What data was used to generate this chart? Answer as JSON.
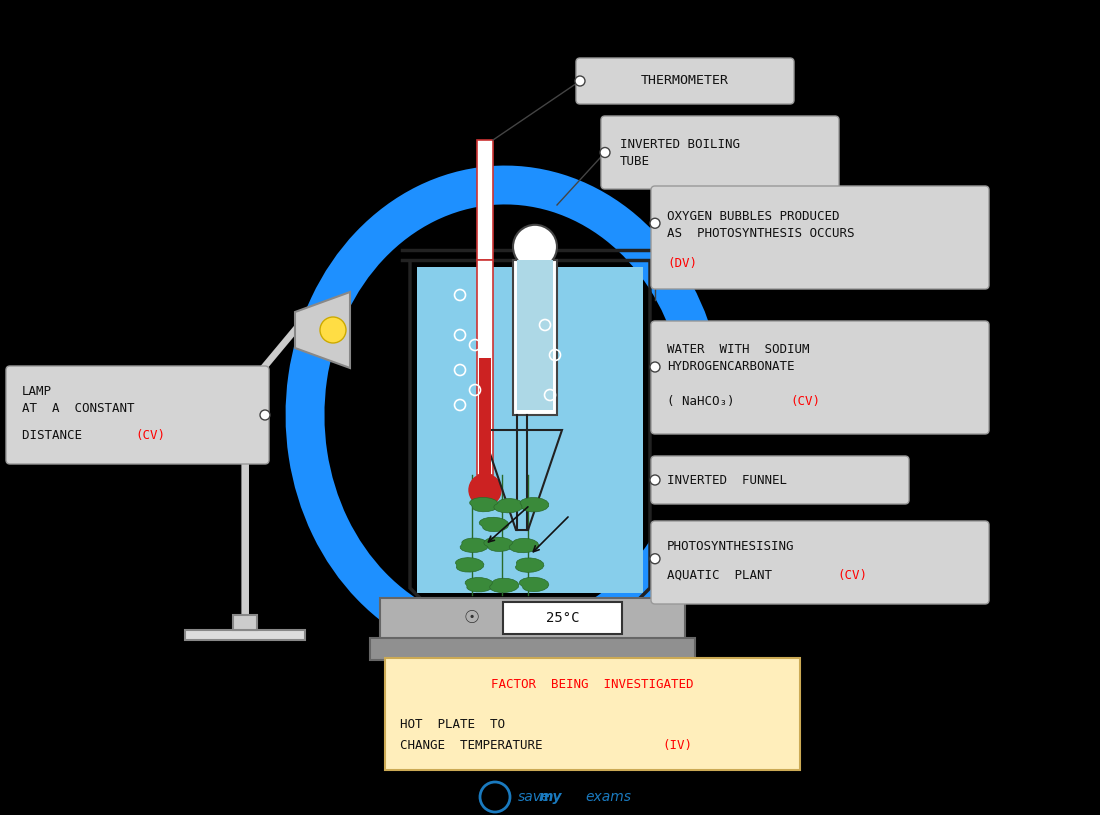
{
  "bg_color": "#000000",
  "label_box_color": "#d0d0d0",
  "label_box_edge": "#aaaaaa",
  "red_color": "#ff0000",
  "black_text": "#111111",
  "water_color": "#87ceeb",
  "blue_arrow_color": "#1e90ff",
  "beaker_edge": "#333333",
  "lamp_color": "#cccccc",
  "hotplate_color": "#aaaaaa",
  "bottom_box_color": "#ffeebb",
  "bottom_box_edge": "#ccaa55",
  "thermometer_box_label": "THERMOMETER",
  "boiling_tube_label": "INVERTED BOILING\nTUBE",
  "oxygen_label_line1": "OXYGEN BUBBLES PRODUCED",
  "oxygen_label_line2": "AS  PHOTOSYNTHESIS OCCURS",
  "oxygen_label_dv": "(DV)",
  "water_label_line1": "WATER  WITH  SODIUM",
  "water_label_line2": "HYDROGENCARBONATE",
  "water_label_line3": "( NaHCO₃)  (CV)",
  "funnel_label": "INVERTED  FUNNEL",
  "plant_label_line1": "PHOTOSYNTHESISING",
  "plant_label_line2": "AQUATIC  PLANT  (CV)",
  "lamp_label_line1": "LAMP",
  "lamp_label_line2": "AT  A  CONSTANT",
  "lamp_label_line3": "DISTANCE  (CV)",
  "factor_line1": "FACTOR  BEING  INVESTIGATED",
  "factor_line2": "HOT  PLATE  TO",
  "factor_line3": "CHANGE  TEMPERATURE  (IV)",
  "temp_label": "25°C",
  "savemyexams_text": "save my exams"
}
